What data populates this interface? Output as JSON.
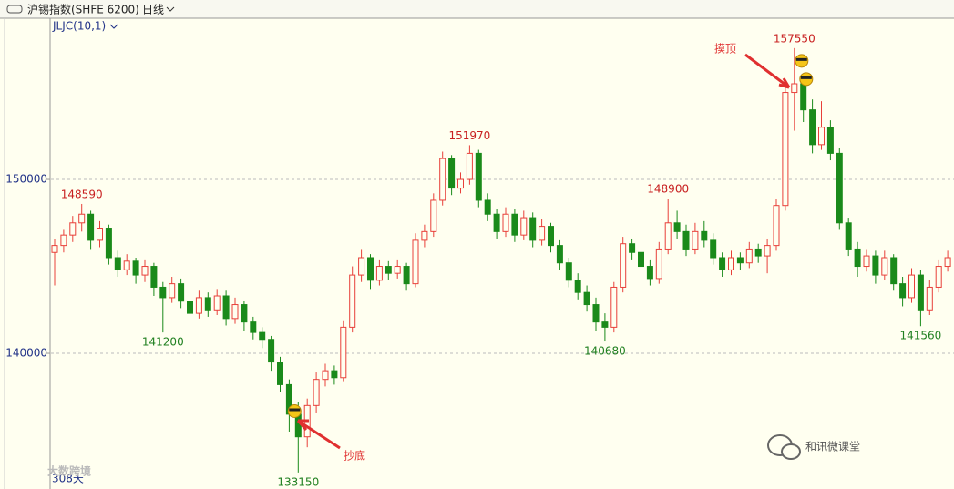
{
  "chart_data": {
    "type": "candlestick",
    "title": "沪锡指数(SHFE 6200)",
    "period": "日线",
    "indicator": "JLJC(10,1)",
    "range_label": "308天",
    "annotations": [
      "摸顶",
      "抄底"
    ],
    "watermarks": [
      "大数跨境",
      "和讯微课堂"
    ],
    "up_color": "#e8403a",
    "down_color": "#1a8a1a",
    "grid": true,
    "ylim": [
      132200,
      159270
    ],
    "yticks": [
      140000,
      150000
    ],
    "open": [
      145800,
      146200,
      146800,
      147500,
      148000,
      146500,
      147200,
      145500,
      144800,
      145300,
      144500,
      145000,
      143800,
      143200,
      144000,
      143000,
      142300,
      143200,
      142500,
      143300,
      142000,
      142800,
      141800,
      141200,
      140800,
      139500,
      138200,
      136500,
      135200,
      137000,
      138500,
      139000,
      138600,
      141500,
      144500,
      145500,
      144200,
      145000,
      144600,
      145000,
      144000,
      146500,
      147000,
      148800,
      151200,
      149500,
      150000,
      151500,
      148800,
      148000,
      147000,
      148000,
      146800,
      147800,
      146500,
      147300,
      146200,
      145200,
      144200,
      143500,
      142800,
      141800,
      141500,
      143800,
      146300,
      145800,
      145000,
      144300,
      146000,
      147500,
      147000,
      146000,
      147000,
      146500,
      145500,
      144800,
      145500,
      145200,
      146000,
      145600,
      146200,
      148500,
      155000,
      155500,
      154000,
      152000,
      153000,
      151500,
      147500,
      146000,
      145000,
      145600,
      144500,
      145500,
      144000,
      143200,
      144500,
      142500,
      143800,
      145000
    ],
    "high": [
      146600,
      147100,
      147900,
      148590,
      148200,
      147600,
      147400,
      145900,
      145700,
      145500,
      145400,
      145200,
      144100,
      144400,
      144300,
      143400,
      143600,
      143500,
      143700,
      143600,
      143200,
      143000,
      142100,
      141500,
      141000,
      139800,
      138500,
      137200,
      137400,
      138900,
      139400,
      139300,
      141900,
      145000,
      146000,
      145700,
      145400,
      145300,
      145400,
      145200,
      146900,
      147400,
      149200,
      151600,
      151400,
      150400,
      151970,
      151700,
      149200,
      148300,
      148400,
      148300,
      148200,
      148100,
      147700,
      147500,
      146500,
      145500,
      144600,
      143900,
      143200,
      142300,
      144100,
      146700,
      146600,
      146200,
      145400,
      146400,
      148900,
      148200,
      147400,
      147500,
      147600,
      146900,
      145800,
      145900,
      145800,
      146400,
      146300,
      146600,
      148900,
      155400,
      157550,
      156000,
      154600,
      154500,
      153400,
      151800,
      147800,
      146400,
      146000,
      145900,
      145900,
      145700,
      144400,
      144900,
      144800,
      144200,
      145400,
      145900
    ],
    "low": [
      143900,
      145800,
      146400,
      147000,
      146000,
      146100,
      145100,
      144400,
      144500,
      144000,
      144100,
      143300,
      141200,
      142900,
      142600,
      141800,
      142000,
      142100,
      142200,
      141600,
      141700,
      141300,
      140800,
      140300,
      139000,
      137800,
      135500,
      133150,
      134600,
      136600,
      138100,
      138200,
      138400,
      141200,
      144100,
      143700,
      143900,
      144200,
      144300,
      143600,
      143800,
      146100,
      146700,
      148500,
      149100,
      149200,
      149700,
      148400,
      147600,
      146600,
      146700,
      146400,
      146500,
      146100,
      146200,
      145800,
      144800,
      143800,
      143100,
      142400,
      141300,
      140680,
      141200,
      143500,
      145400,
      144600,
      143900,
      144000,
      145700,
      146600,
      145600,
      145700,
      146100,
      145100,
      144400,
      144500,
      144800,
      144900,
      145200,
      144600,
      145900,
      148200,
      152800,
      153300,
      151500,
      151700,
      151100,
      147100,
      145600,
      144400,
      144700,
      144000,
      144200,
      143600,
      142700,
      142900,
      141560,
      142200,
      143500,
      144700
    ],
    "close": [
      146200,
      146800,
      147500,
      148000,
      146500,
      147200,
      145500,
      144800,
      145300,
      144500,
      145000,
      143800,
      143200,
      144000,
      143000,
      142300,
      143200,
      142500,
      143300,
      142000,
      142800,
      141800,
      141200,
      140800,
      139500,
      138200,
      136500,
      135200,
      137000,
      138500,
      139000,
      138600,
      141500,
      144500,
      145500,
      144200,
      145000,
      144600,
      145000,
      144000,
      146500,
      147000,
      148800,
      151200,
      149500,
      150000,
      151500,
      148800,
      148000,
      147000,
      148000,
      146800,
      147800,
      146500,
      147300,
      146200,
      145200,
      144200,
      143500,
      142800,
      141800,
      141500,
      143800,
      146300,
      145800,
      145000,
      144300,
      146000,
      147500,
      147000,
      146000,
      147000,
      146500,
      145500,
      144800,
      145500,
      145200,
      146000,
      145600,
      146200,
      148500,
      155000,
      155500,
      154000,
      152000,
      153000,
      151500,
      147500,
      146000,
      145000,
      145600,
      144500,
      145500,
      144000,
      143200,
      144500,
      142500,
      143800,
      145000,
      145500
    ]
  }
}
